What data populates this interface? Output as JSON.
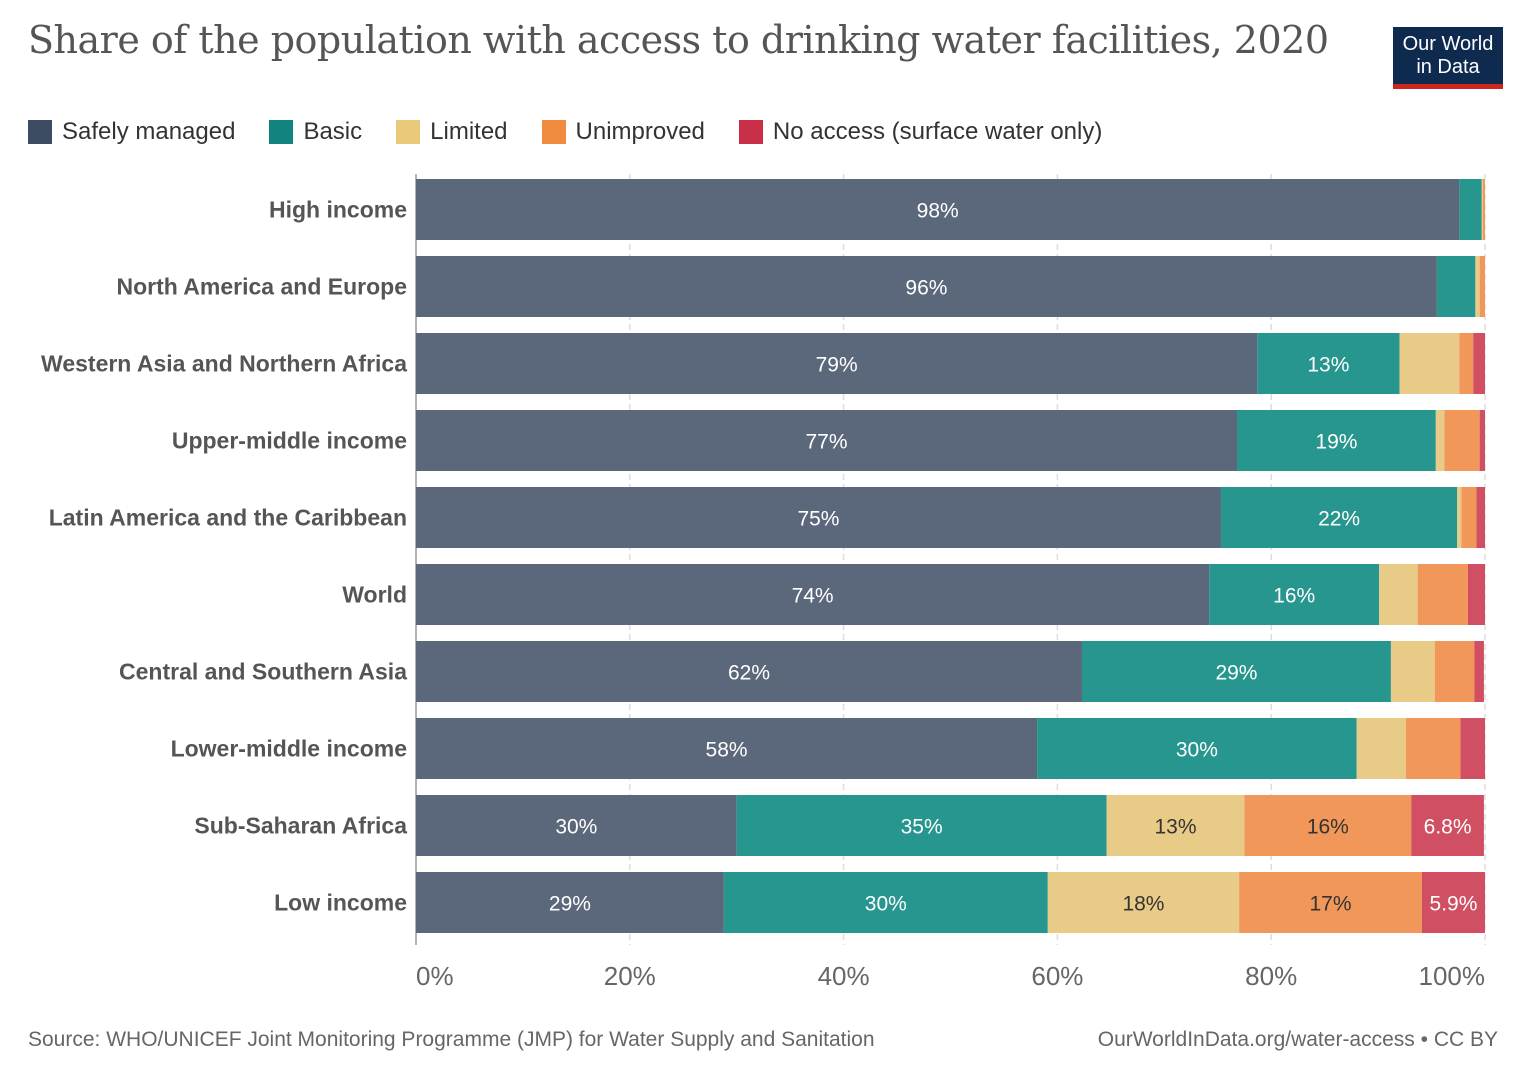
{
  "title": "Share of the population with access to drinking water facilities, 2020",
  "logo": {
    "line1": "Our World",
    "line2": "in Data"
  },
  "footer": {
    "source": "Source: WHO/UNICEF Joint Monitoring Programme (JMP) for Water Supply and Sanitation",
    "url": "OurWorldInData.org/water-access • CC BY"
  },
  "chart_data": {
    "type": "bar",
    "orientation": "horizontal",
    "stacked": true,
    "title": "Share of the population with access to drinking water facilities, 2020",
    "categories": [
      "High income",
      "North America and Europe",
      "Western Asia and Northern Africa",
      "Upper-middle income",
      "Latin America and the Caribbean",
      "World",
      "Central and Southern Asia",
      "Lower-middle income",
      "Sub-Saharan Africa",
      "Low income"
    ],
    "series": [
      {
        "name": "Safely managed",
        "color": "#5b687b",
        "legend_color": "#3d4c63",
        "values": [
          97.6,
          95.5,
          78.7,
          76.8,
          75.3,
          74.2,
          62.3,
          58.1,
          30.0,
          28.8
        ]
      },
      {
        "name": "Basic",
        "color": "#26968f",
        "legend_color": "#11857d",
        "values": [
          2.1,
          3.6,
          13.3,
          18.6,
          22.1,
          15.9,
          28.9,
          29.9,
          34.6,
          30.3
        ]
      },
      {
        "name": "Limited",
        "color": "#e9cb88",
        "legend_color": "#ebc97a",
        "values": [
          0.1,
          0.4,
          5.6,
          0.8,
          0.4,
          3.6,
          4.1,
          4.6,
          12.9,
          17.9
        ]
      },
      {
        "name": "Unimproved",
        "color": "#f2975a",
        "legend_color": "#ef8a3e",
        "values": [
          0.2,
          0.5,
          1.3,
          3.3,
          1.4,
          4.7,
          3.7,
          5.1,
          15.6,
          17.1
        ]
      },
      {
        "name": "No access (surface water only)",
        "color": "#d14f62",
        "legend_color": "#c92f47",
        "values": [
          0,
          0,
          1.1,
          0.5,
          0.8,
          1.6,
          0.9,
          2.3,
          6.8,
          5.9
        ]
      }
    ],
    "xlim": [
      0,
      100
    ],
    "xticks": [
      "0%",
      "20%",
      "40%",
      "60%",
      "80%",
      "100%"
    ],
    "legend_position": "top-left",
    "grid": true
  }
}
